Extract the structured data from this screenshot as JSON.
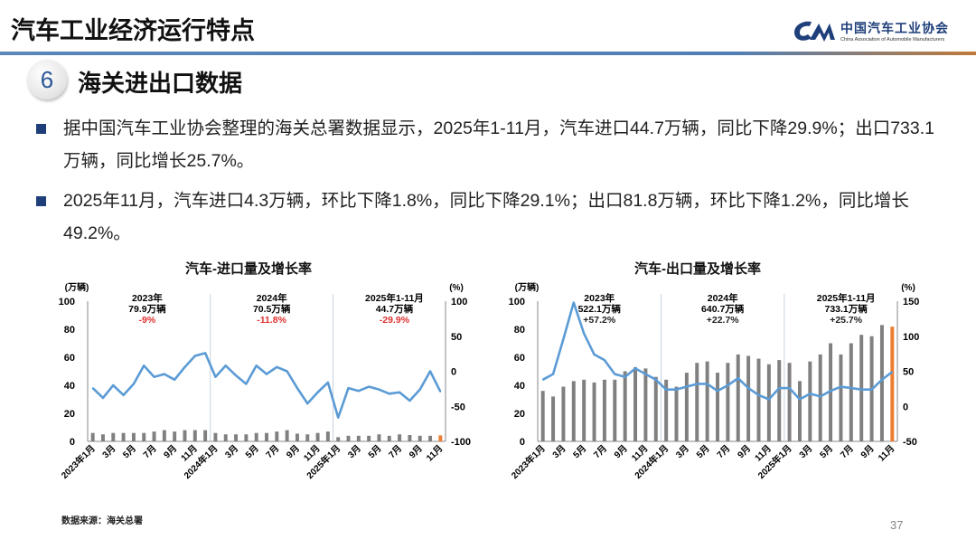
{
  "header": {
    "title": "汽车工业经济运行特点",
    "logo_cn": "中国汽车工业协会",
    "logo_en": "China Association of Automobile Manufacturers"
  },
  "section": {
    "number": "6",
    "title": "海关进出口数据"
  },
  "bullets": [
    "据中国汽车工业协会整理的海关总署数据显示，2025年1-11月，汽车进口44.7万辆，同比下降29.9%；出口733.1万辆，同比增长25.7%。",
    "2025年11月，汽车进口4.3万辆，环比下降1.8%，同比下降29.1%；出口81.8万辆，环比下降1.2%，同比增长49.2%。"
  ],
  "colors": {
    "bar": "#808080",
    "bar_latest": "#ed7d31",
    "line": "#5b9bd5",
    "negative": "#e03030",
    "brand": "#1f3f7a"
  },
  "chart_data": [
    {
      "type": "bar+line",
      "title": "汽车-进口量及增长率",
      "ylabel_left": "(万辆)",
      "ylabel_right": "(%)",
      "ylim_left": [
        0,
        100
      ],
      "yticks_left": [
        "0",
        "20",
        "40",
        "60",
        "80",
        "100"
      ],
      "ylim_right": [
        -100,
        100
      ],
      "yticks_right": [
        "-100",
        "-50",
        "0",
        "50",
        "100"
      ],
      "x_tick_labels": [
        "2023年1月",
        "3月",
        "5月",
        "7月",
        "9月",
        "11月",
        "2024年1月",
        "3月",
        "5月",
        "7月",
        "9月",
        "11月",
        "2025年1月",
        "3月",
        "5月",
        "7月",
        "9月",
        "11月"
      ],
      "annotations": [
        {
          "period": "2023年",
          "total": "79.9万辆",
          "growth": "-9%"
        },
        {
          "period": "2024年",
          "total": "70.5万辆",
          "growth": "-11.8%"
        },
        {
          "period": "2025年1-11月",
          "total": "44.7万辆",
          "growth": "-29.9%"
        }
      ],
      "series": [
        {
          "kind": "bar",
          "axis": "left",
          "values": [
            6,
            5,
            6,
            6,
            6,
            6,
            7,
            8,
            7,
            8,
            8,
            8,
            6,
            5,
            5,
            5,
            6,
            6,
            7,
            8,
            5.5,
            5,
            6,
            7,
            3,
            4,
            4,
            4,
            5,
            4,
            5,
            4.5,
            4,
            4,
            4.3
          ]
        },
        {
          "kind": "line",
          "axis": "right",
          "values": [
            -24,
            -38,
            -20,
            -34,
            -18,
            8,
            -8,
            -4,
            -12,
            6,
            22,
            26,
            -8,
            8,
            -6,
            -18,
            8,
            -4,
            6,
            0,
            -24,
            -46,
            -30,
            -16,
            -66,
            -24,
            -28,
            -22,
            -26,
            -32,
            -30,
            -42,
            -26,
            0,
            -29.1
          ]
        }
      ]
    },
    {
      "type": "bar+line",
      "title": "汽车-出口量及增长率",
      "ylabel_left": "(万辆)",
      "ylabel_right": "(%)",
      "ylim_left": [
        0,
        100
      ],
      "yticks_left": [
        "0",
        "20",
        "40",
        "60",
        "80",
        "100"
      ],
      "ylim_right": [
        -50,
        150
      ],
      "yticks_right": [
        "-50",
        "0",
        "50",
        "100",
        "150"
      ],
      "x_tick_labels": [
        "2023年1月",
        "3月",
        "5月",
        "7月",
        "9月",
        "11月",
        "2024年1月",
        "3月",
        "5月",
        "7月",
        "9月",
        "11月",
        "2025年1月",
        "3月",
        "5月",
        "7月",
        "9月",
        "11月"
      ],
      "annotations": [
        {
          "period": "2023年",
          "total": "522.1万辆",
          "growth": "+57.2%"
        },
        {
          "period": "2024年",
          "total": "640.7万辆",
          "growth": "+22.7%"
        },
        {
          "period": "2025年1-11月",
          "total": "733.1万辆",
          "growth": "+25.7%"
        }
      ],
      "series": [
        {
          "kind": "bar",
          "axis": "left",
          "values": [
            36,
            32,
            39,
            43,
            44,
            42,
            44,
            44,
            50,
            53,
            52,
            46,
            44,
            39,
            49,
            56,
            57,
            49,
            56,
            62,
            61,
            59,
            55,
            58,
            56,
            43,
            57,
            62,
            70,
            62,
            70,
            76,
            75,
            83,
            81.8
          ]
        },
        {
          "kind": "line",
          "axis": "right",
          "values": [
            38,
            46,
            96,
            148,
            104,
            74,
            66,
            46,
            42,
            54,
            46,
            38,
            24,
            24,
            28,
            32,
            32,
            22,
            30,
            40,
            26,
            16,
            10,
            26,
            26,
            10,
            18,
            14,
            22,
            28,
            26,
            24,
            24,
            38,
            49.2
          ]
        }
      ]
    }
  ],
  "footer": {
    "source": "数据来源：海关总署",
    "page": "37"
  }
}
